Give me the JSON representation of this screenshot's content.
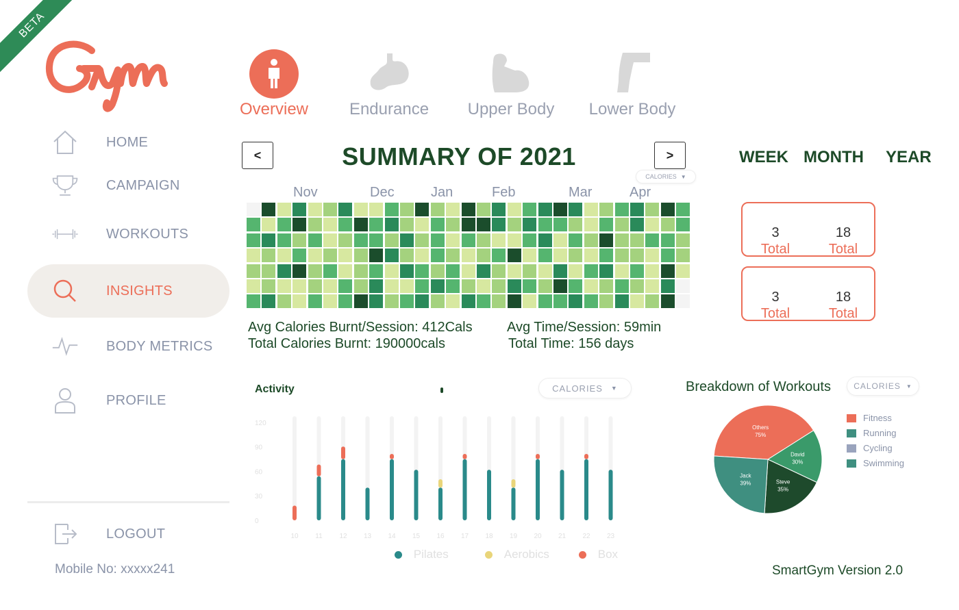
{
  "ribbon": "BETA",
  "colors": {
    "accent": "#ec6e58",
    "dark_green": "#1d4a28",
    "muted": "#8a93a8"
  },
  "sidebar": {
    "items": [
      {
        "label": "HOME",
        "icon": "home-icon"
      },
      {
        "label": "CAMPAIGN",
        "icon": "trophy-icon"
      },
      {
        "label": "WORKOUTS",
        "icon": "dumbbell-icon"
      },
      {
        "label": "INSIGHTS",
        "icon": "search-icon",
        "active": true
      },
      {
        "label": "BODY METRICS",
        "icon": "pulse-icon"
      },
      {
        "label": "PROFILE",
        "icon": "user-icon"
      }
    ],
    "logout": "LOGOUT",
    "mobile": "Mobile No: xxxxx241"
  },
  "tabs": [
    {
      "label": "Overview",
      "icon": "person-icon",
      "active": true
    },
    {
      "label": "Endurance",
      "icon": "stomach-icon"
    },
    {
      "label": "Upper Body",
      "icon": "arm-icon"
    },
    {
      "label": "Lower Body",
      "icon": "leg-icon"
    }
  ],
  "summary": {
    "title": "SUMMARY OF 2021",
    "prev": "<",
    "next": ">",
    "dropdown": "CALORIES",
    "months": [
      "Nov",
      "Dec",
      "Jan",
      "Feb",
      "Mar",
      "Apr"
    ]
  },
  "periods": [
    "WEEK",
    "MONTH",
    "YEAR"
  ],
  "stats": {
    "avg_calories": "Avg Calories Burnt/Session: 412Cals",
    "total_calories": "Total Calories Burnt: 190000cals",
    "avg_time": "Avg Time/Session: 59min",
    "total_time": "Total Time: 156 days"
  },
  "cards": [
    {
      "left_value": "3",
      "left_caption": "Total",
      "right_value": "18",
      "right_caption": "Total"
    },
    {
      "left_value": "3",
      "left_caption": "Total",
      "right_value": "18",
      "right_caption": "Total"
    }
  ],
  "heatmap": {
    "rows": 7,
    "cols": 29,
    "palette": [
      "#f4f4f4",
      "#d7e8a0",
      "#a4d27e",
      "#55b56f",
      "#2a8a5a",
      "#1b4d2c"
    ],
    "levels": [
      [
        0,
        5,
        1,
        4,
        1,
        2,
        4,
        1,
        1,
        3,
        2,
        5,
        2,
        1,
        5,
        2,
        4,
        1,
        3,
        4,
        5,
        4,
        1,
        2,
        3,
        4,
        2,
        5,
        3
      ],
      [
        3,
        1,
        3,
        5,
        2,
        1,
        3,
        5,
        3,
        4,
        2,
        1,
        3,
        2,
        5,
        5,
        4,
        2,
        4,
        3,
        3,
        2,
        1,
        3,
        2,
        4,
        1,
        2,
        3
      ],
      [
        3,
        4,
        3,
        2,
        3,
        1,
        2,
        3,
        3,
        2,
        4,
        2,
        3,
        1,
        3,
        2,
        1,
        1,
        3,
        4,
        1,
        3,
        2,
        5,
        2,
        2,
        3,
        3,
        2
      ],
      [
        1,
        2,
        1,
        3,
        1,
        2,
        1,
        2,
        5,
        4,
        2,
        1,
        3,
        2,
        1,
        2,
        3,
        5,
        1,
        3,
        1,
        2,
        1,
        3,
        2,
        2,
        1,
        3,
        2
      ],
      [
        2,
        2,
        4,
        5,
        2,
        3,
        1,
        2,
        3,
        1,
        4,
        3,
        2,
        3,
        1,
        4,
        2,
        1,
        2,
        1,
        4,
        1,
        3,
        4,
        1,
        3,
        1,
        5,
        1
      ],
      [
        1,
        2,
        1,
        1,
        2,
        1,
        3,
        2,
        4,
        1,
        1,
        3,
        4,
        3,
        2,
        1,
        2,
        4,
        3,
        2,
        5,
        3,
        1,
        2,
        3,
        2,
        1,
        4,
        0
      ],
      [
        3,
        4,
        2,
        1,
        3,
        1,
        3,
        5,
        4,
        2,
        3,
        4,
        2,
        1,
        4,
        3,
        2,
        5,
        1,
        3,
        3,
        4,
        3,
        2,
        4,
        1,
        2,
        5,
        0
      ]
    ]
  },
  "activity": {
    "title": "Activity",
    "dropdown": "CALORIES",
    "legend": [
      {
        "name": "Pilates",
        "color": "#2a8a8a"
      },
      {
        "name": "Aerobics",
        "color": "#e9d57a"
      },
      {
        "name": "Box",
        "color": "#ec6e58"
      }
    ]
  },
  "breakdown": {
    "title": "Breakdown of Workouts",
    "dropdown": "CALORIES",
    "legend": [
      {
        "name": "Fitness",
        "color": "#ec6e58"
      },
      {
        "name": "Running",
        "color": "#3f8f80"
      },
      {
        "name": "Cycling",
        "color": "#9aa4bd"
      },
      {
        "name": "Swimming",
        "color": "#3f8f80"
      }
    ]
  },
  "chart_data": [
    {
      "type": "bar",
      "title": "Activity",
      "categories": [
        "10",
        "11",
        "12",
        "13",
        "14",
        "15",
        "16",
        "17",
        "18",
        "19",
        "20",
        "21",
        "22",
        "23"
      ],
      "yticks": [
        0,
        30,
        60,
        90,
        120
      ],
      "ylim": [
        0,
        130
      ],
      "series": [
        {
          "name": "Pilates",
          "values": [
            0,
            54,
            75,
            40,
            75,
            62,
            40,
            75,
            62,
            40,
            75,
            62,
            75,
            62
          ]
        },
        {
          "name": "Aerobics",
          "values": [
            0,
            0,
            0,
            0,
            0,
            0,
            12,
            0,
            0,
            12,
            0,
            0,
            0,
            0
          ]
        },
        {
          "name": "Box",
          "values": [
            18,
            16,
            17,
            0,
            8,
            0,
            0,
            8,
            0,
            0,
            8,
            0,
            8,
            0
          ]
        }
      ],
      "legend_position": "bottom"
    },
    {
      "type": "pie",
      "title": "Breakdown of Workouts",
      "slices": [
        {
          "label": "Others",
          "value": "75%",
          "share": 0.4,
          "color": "#ec6e58"
        },
        {
          "label": "David",
          "value": "30%",
          "share": 0.16,
          "color": "#3a9a6a"
        },
        {
          "label": "Steve",
          "value": "35%",
          "share": 0.19,
          "color": "#1e4a2c"
        },
        {
          "label": "Jack",
          "value": "39%",
          "share": 0.25,
          "color": "#3f8f80"
        }
      ],
      "legend_position": "right"
    }
  ],
  "footer": {
    "version": "SmartGym Version 2.0"
  }
}
